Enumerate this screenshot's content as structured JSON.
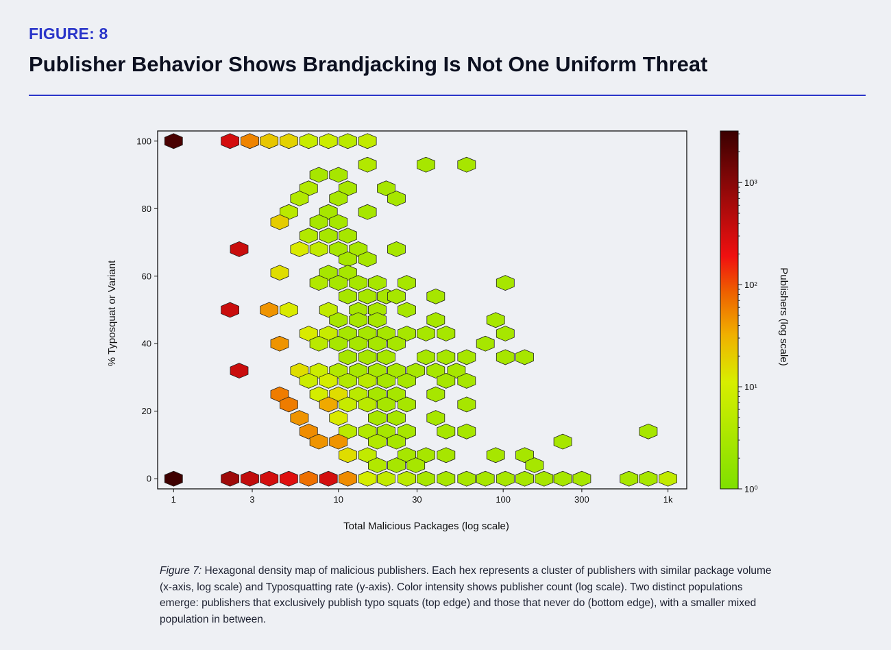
{
  "header": {
    "figure_label": "FIGURE: 8",
    "title": "Publisher Behavior Shows Brandjacking Is Not One Uniform Threat"
  },
  "caption": {
    "lead": "Figure 7:",
    "text": " Hexagonal density map of malicious publishers. Each hex represents a cluster of publishers with similar package volume (x-axis, log scale) and Typosquatting rate (y-axis). Color intensity shows publisher count (log scale). Two distinct populations emerge: publishers that exclusively publish typo squats (top edge) and those that never do (bottom edge), with a smaller mixed population in between."
  },
  "colors": {
    "background": "#eef0f4",
    "accent": "#2a35c9",
    "colormap": [
      "#7fe000",
      "#d8ee00",
      "#f0b000",
      "#ee6000",
      "#f01010",
      "#8a0808",
      "#3a0000"
    ]
  },
  "chart_data": {
    "type": "heatmap",
    "subtype": "hexbin",
    "xlabel": "Total Malicious Packages (log scale)",
    "ylabel": "% Typosquat or Variant",
    "colorbar_label": "Publishers (log scale)",
    "x_scale": "log",
    "color_scale": "log",
    "xlim": [
      0.8,
      1300
    ],
    "ylim": [
      -3,
      103
    ],
    "x_ticks": [
      1,
      3,
      10,
      30,
      100,
      300,
      1000
    ],
    "x_tick_labels": [
      "1",
      "3",
      "10",
      "30",
      "100",
      "300",
      "1k"
    ],
    "y_ticks": [
      0,
      20,
      40,
      60,
      80,
      100
    ],
    "y_tick_labels": [
      "0",
      "20",
      "40",
      "60",
      "80",
      "100"
    ],
    "color_range": [
      1,
      3200
    ],
    "colorbar_ticks": [
      1,
      10,
      100,
      1000
    ],
    "colorbar_tick_labels": [
      "10⁰",
      "10¹",
      "10²",
      "10³"
    ],
    "grid": false,
    "legend": "colorbar-right",
    "bins": [
      {
        "x": 1.0,
        "y": 100,
        "count": 2500
      },
      {
        "x": 2.2,
        "y": 100,
        "count": 300
      },
      {
        "x": 2.9,
        "y": 100,
        "count": 55
      },
      {
        "x": 3.8,
        "y": 100,
        "count": 22
      },
      {
        "x": 5.0,
        "y": 100,
        "count": 18
      },
      {
        "x": 6.6,
        "y": 100,
        "count": 7
      },
      {
        "x": 8.7,
        "y": 100,
        "count": 8
      },
      {
        "x": 11.4,
        "y": 100,
        "count": 5
      },
      {
        "x": 15.0,
        "y": 100,
        "count": 6
      },
      {
        "x": 15.0,
        "y": 93,
        "count": 4
      },
      {
        "x": 34.0,
        "y": 93,
        "count": 3
      },
      {
        "x": 60.0,
        "y": 93,
        "count": 3
      },
      {
        "x": 7.6,
        "y": 90,
        "count": 3
      },
      {
        "x": 10.0,
        "y": 90,
        "count": 3
      },
      {
        "x": 6.6,
        "y": 86,
        "count": 4
      },
      {
        "x": 11.4,
        "y": 86,
        "count": 3
      },
      {
        "x": 19.5,
        "y": 86,
        "count": 3
      },
      {
        "x": 5.8,
        "y": 83,
        "count": 4
      },
      {
        "x": 10.0,
        "y": 83,
        "count": 3
      },
      {
        "x": 22.5,
        "y": 83,
        "count": 3
      },
      {
        "x": 5.0,
        "y": 79,
        "count": 5
      },
      {
        "x": 8.7,
        "y": 79,
        "count": 3
      },
      {
        "x": 15.0,
        "y": 79,
        "count": 3
      },
      {
        "x": 4.4,
        "y": 76,
        "count": 20
      },
      {
        "x": 7.6,
        "y": 76,
        "count": 3
      },
      {
        "x": 10.0,
        "y": 76,
        "count": 3
      },
      {
        "x": 6.6,
        "y": 72,
        "count": 4
      },
      {
        "x": 8.7,
        "y": 72,
        "count": 3
      },
      {
        "x": 11.4,
        "y": 72,
        "count": 3
      },
      {
        "x": 2.5,
        "y": 68,
        "count": 350
      },
      {
        "x": 5.8,
        "y": 68,
        "count": 12
      },
      {
        "x": 7.6,
        "y": 68,
        "count": 6
      },
      {
        "x": 10.0,
        "y": 68,
        "count": 3
      },
      {
        "x": 13.2,
        "y": 68,
        "count": 3
      },
      {
        "x": 22.5,
        "y": 68,
        "count": 3
      },
      {
        "x": 11.4,
        "y": 65,
        "count": 3
      },
      {
        "x": 15.0,
        "y": 65,
        "count": 3
      },
      {
        "x": 4.4,
        "y": 61,
        "count": 15
      },
      {
        "x": 8.7,
        "y": 61,
        "count": 3
      },
      {
        "x": 11.4,
        "y": 61,
        "count": 3
      },
      {
        "x": 7.6,
        "y": 58,
        "count": 4
      },
      {
        "x": 10.0,
        "y": 58,
        "count": 3
      },
      {
        "x": 13.2,
        "y": 58,
        "count": 3
      },
      {
        "x": 17.2,
        "y": 58,
        "count": 3
      },
      {
        "x": 26.0,
        "y": 58,
        "count": 3
      },
      {
        "x": 103.0,
        "y": 58,
        "count": 3
      },
      {
        "x": 11.4,
        "y": 54,
        "count": 3
      },
      {
        "x": 15.0,
        "y": 54,
        "count": 3
      },
      {
        "x": 19.5,
        "y": 54,
        "count": 3
      },
      {
        "x": 22.5,
        "y": 54,
        "count": 3
      },
      {
        "x": 39.0,
        "y": 54,
        "count": 3
      },
      {
        "x": 2.2,
        "y": 50,
        "count": 350
      },
      {
        "x": 3.8,
        "y": 50,
        "count": 45
      },
      {
        "x": 5.0,
        "y": 50,
        "count": 12
      },
      {
        "x": 8.7,
        "y": 50,
        "count": 6
      },
      {
        "x": 13.2,
        "y": 50,
        "count": 3
      },
      {
        "x": 17.2,
        "y": 50,
        "count": 3
      },
      {
        "x": 26.0,
        "y": 50,
        "count": 3
      },
      {
        "x": 10.0,
        "y": 47,
        "count": 3
      },
      {
        "x": 13.2,
        "y": 47,
        "count": 3
      },
      {
        "x": 17.2,
        "y": 47,
        "count": 3
      },
      {
        "x": 39.0,
        "y": 47,
        "count": 3
      },
      {
        "x": 90.0,
        "y": 47,
        "count": 3
      },
      {
        "x": 6.6,
        "y": 43,
        "count": 12
      },
      {
        "x": 8.7,
        "y": 43,
        "count": 7
      },
      {
        "x": 11.4,
        "y": 43,
        "count": 3
      },
      {
        "x": 15.0,
        "y": 43,
        "count": 3
      },
      {
        "x": 19.5,
        "y": 43,
        "count": 3
      },
      {
        "x": 26.0,
        "y": 43,
        "count": 3
      },
      {
        "x": 34.0,
        "y": 43,
        "count": 3
      },
      {
        "x": 45.0,
        "y": 43,
        "count": 3
      },
      {
        "x": 103.0,
        "y": 43,
        "count": 3
      },
      {
        "x": 4.4,
        "y": 40,
        "count": 45
      },
      {
        "x": 7.6,
        "y": 40,
        "count": 5
      },
      {
        "x": 10.0,
        "y": 40,
        "count": 3
      },
      {
        "x": 13.2,
        "y": 40,
        "count": 3
      },
      {
        "x": 17.2,
        "y": 40,
        "count": 3
      },
      {
        "x": 22.5,
        "y": 40,
        "count": 3
      },
      {
        "x": 78.0,
        "y": 40,
        "count": 3
      },
      {
        "x": 11.4,
        "y": 36,
        "count": 3
      },
      {
        "x": 15.0,
        "y": 36,
        "count": 3
      },
      {
        "x": 19.5,
        "y": 36,
        "count": 3
      },
      {
        "x": 34.0,
        "y": 36,
        "count": 3
      },
      {
        "x": 45.0,
        "y": 36,
        "count": 3
      },
      {
        "x": 60.0,
        "y": 36,
        "count": 3
      },
      {
        "x": 103.0,
        "y": 36,
        "count": 3
      },
      {
        "x": 135.0,
        "y": 36,
        "count": 3
      },
      {
        "x": 2.5,
        "y": 32,
        "count": 350
      },
      {
        "x": 5.8,
        "y": 32,
        "count": 15
      },
      {
        "x": 7.6,
        "y": 32,
        "count": 8
      },
      {
        "x": 10.0,
        "y": 32,
        "count": 4
      },
      {
        "x": 13.2,
        "y": 32,
        "count": 3
      },
      {
        "x": 17.2,
        "y": 32,
        "count": 3
      },
      {
        "x": 22.5,
        "y": 32,
        "count": 3
      },
      {
        "x": 29.5,
        "y": 32,
        "count": 3
      },
      {
        "x": 39.0,
        "y": 32,
        "count": 3
      },
      {
        "x": 52.0,
        "y": 32,
        "count": 3
      },
      {
        "x": 6.6,
        "y": 29,
        "count": 8
      },
      {
        "x": 8.7,
        "y": 29,
        "count": 10
      },
      {
        "x": 11.4,
        "y": 29,
        "count": 4
      },
      {
        "x": 15.0,
        "y": 29,
        "count": 5
      },
      {
        "x": 19.5,
        "y": 29,
        "count": 3
      },
      {
        "x": 26.0,
        "y": 29,
        "count": 3
      },
      {
        "x": 45.0,
        "y": 29,
        "count": 3
      },
      {
        "x": 60.0,
        "y": 29,
        "count": 3
      },
      {
        "x": 4.4,
        "y": 25,
        "count": 60
      },
      {
        "x": 7.6,
        "y": 25,
        "count": 10
      },
      {
        "x": 10.0,
        "y": 25,
        "count": 15
      },
      {
        "x": 13.2,
        "y": 25,
        "count": 5
      },
      {
        "x": 17.2,
        "y": 25,
        "count": 3
      },
      {
        "x": 22.5,
        "y": 25,
        "count": 3
      },
      {
        "x": 39.0,
        "y": 25,
        "count": 3
      },
      {
        "x": 5.0,
        "y": 22,
        "count": 60
      },
      {
        "x": 8.7,
        "y": 22,
        "count": 35
      },
      {
        "x": 11.4,
        "y": 22,
        "count": 7
      },
      {
        "x": 15.0,
        "y": 22,
        "count": 5
      },
      {
        "x": 19.5,
        "y": 22,
        "count": 3
      },
      {
        "x": 26.0,
        "y": 22,
        "count": 3
      },
      {
        "x": 60.0,
        "y": 22,
        "count": 3
      },
      {
        "x": 5.8,
        "y": 18,
        "count": 45
      },
      {
        "x": 10.0,
        "y": 18,
        "count": 12
      },
      {
        "x": 17.2,
        "y": 18,
        "count": 3
      },
      {
        "x": 22.5,
        "y": 18,
        "count": 3
      },
      {
        "x": 39.0,
        "y": 18,
        "count": 3
      },
      {
        "x": 6.6,
        "y": 14,
        "count": 50
      },
      {
        "x": 11.4,
        "y": 14,
        "count": 5
      },
      {
        "x": 15.0,
        "y": 14,
        "count": 4
      },
      {
        "x": 19.5,
        "y": 14,
        "count": 3
      },
      {
        "x": 26.0,
        "y": 14,
        "count": 3
      },
      {
        "x": 45.0,
        "y": 14,
        "count": 3
      },
      {
        "x": 60.0,
        "y": 14,
        "count": 3
      },
      {
        "x": 760.0,
        "y": 14,
        "count": 3
      },
      {
        "x": 7.6,
        "y": 11,
        "count": 45
      },
      {
        "x": 10.0,
        "y": 11,
        "count": 45
      },
      {
        "x": 17.2,
        "y": 11,
        "count": 4
      },
      {
        "x": 22.5,
        "y": 11,
        "count": 3
      },
      {
        "x": 230.0,
        "y": 11,
        "count": 3
      },
      {
        "x": 11.4,
        "y": 7,
        "count": 15
      },
      {
        "x": 15.0,
        "y": 7,
        "count": 6
      },
      {
        "x": 26.0,
        "y": 7,
        "count": 3
      },
      {
        "x": 34.0,
        "y": 7,
        "count": 3
      },
      {
        "x": 45.0,
        "y": 7,
        "count": 3
      },
      {
        "x": 90.0,
        "y": 7,
        "count": 3
      },
      {
        "x": 135.0,
        "y": 7,
        "count": 3
      },
      {
        "x": 17.2,
        "y": 4,
        "count": 4
      },
      {
        "x": 22.5,
        "y": 4,
        "count": 3
      },
      {
        "x": 29.5,
        "y": 4,
        "count": 3
      },
      {
        "x": 155.0,
        "y": 4,
        "count": 3
      },
      {
        "x": 1.0,
        "y": 0,
        "count": 3000
      },
      {
        "x": 2.2,
        "y": 0,
        "count": 700
      },
      {
        "x": 2.9,
        "y": 0,
        "count": 400
      },
      {
        "x": 3.8,
        "y": 0,
        "count": 300
      },
      {
        "x": 5.0,
        "y": 0,
        "count": 250
      },
      {
        "x": 6.6,
        "y": 0,
        "count": 70
      },
      {
        "x": 8.7,
        "y": 0,
        "count": 300
      },
      {
        "x": 11.4,
        "y": 0,
        "count": 50
      },
      {
        "x": 15.0,
        "y": 0,
        "count": 10
      },
      {
        "x": 19.5,
        "y": 0,
        "count": 6
      },
      {
        "x": 26.0,
        "y": 0,
        "count": 5
      },
      {
        "x": 34.0,
        "y": 0,
        "count": 3
      },
      {
        "x": 45.0,
        "y": 0,
        "count": 3
      },
      {
        "x": 60.0,
        "y": 0,
        "count": 3
      },
      {
        "x": 78.0,
        "y": 0,
        "count": 3
      },
      {
        "x": 103.0,
        "y": 0,
        "count": 3
      },
      {
        "x": 135.0,
        "y": 0,
        "count": 3
      },
      {
        "x": 177.0,
        "y": 0,
        "count": 3
      },
      {
        "x": 230.0,
        "y": 0,
        "count": 3
      },
      {
        "x": 300.0,
        "y": 0,
        "count": 3
      },
      {
        "x": 580.0,
        "y": 0,
        "count": 3
      },
      {
        "x": 760.0,
        "y": 0,
        "count": 3
      },
      {
        "x": 1000.0,
        "y": 0,
        "count": 6
      }
    ]
  }
}
